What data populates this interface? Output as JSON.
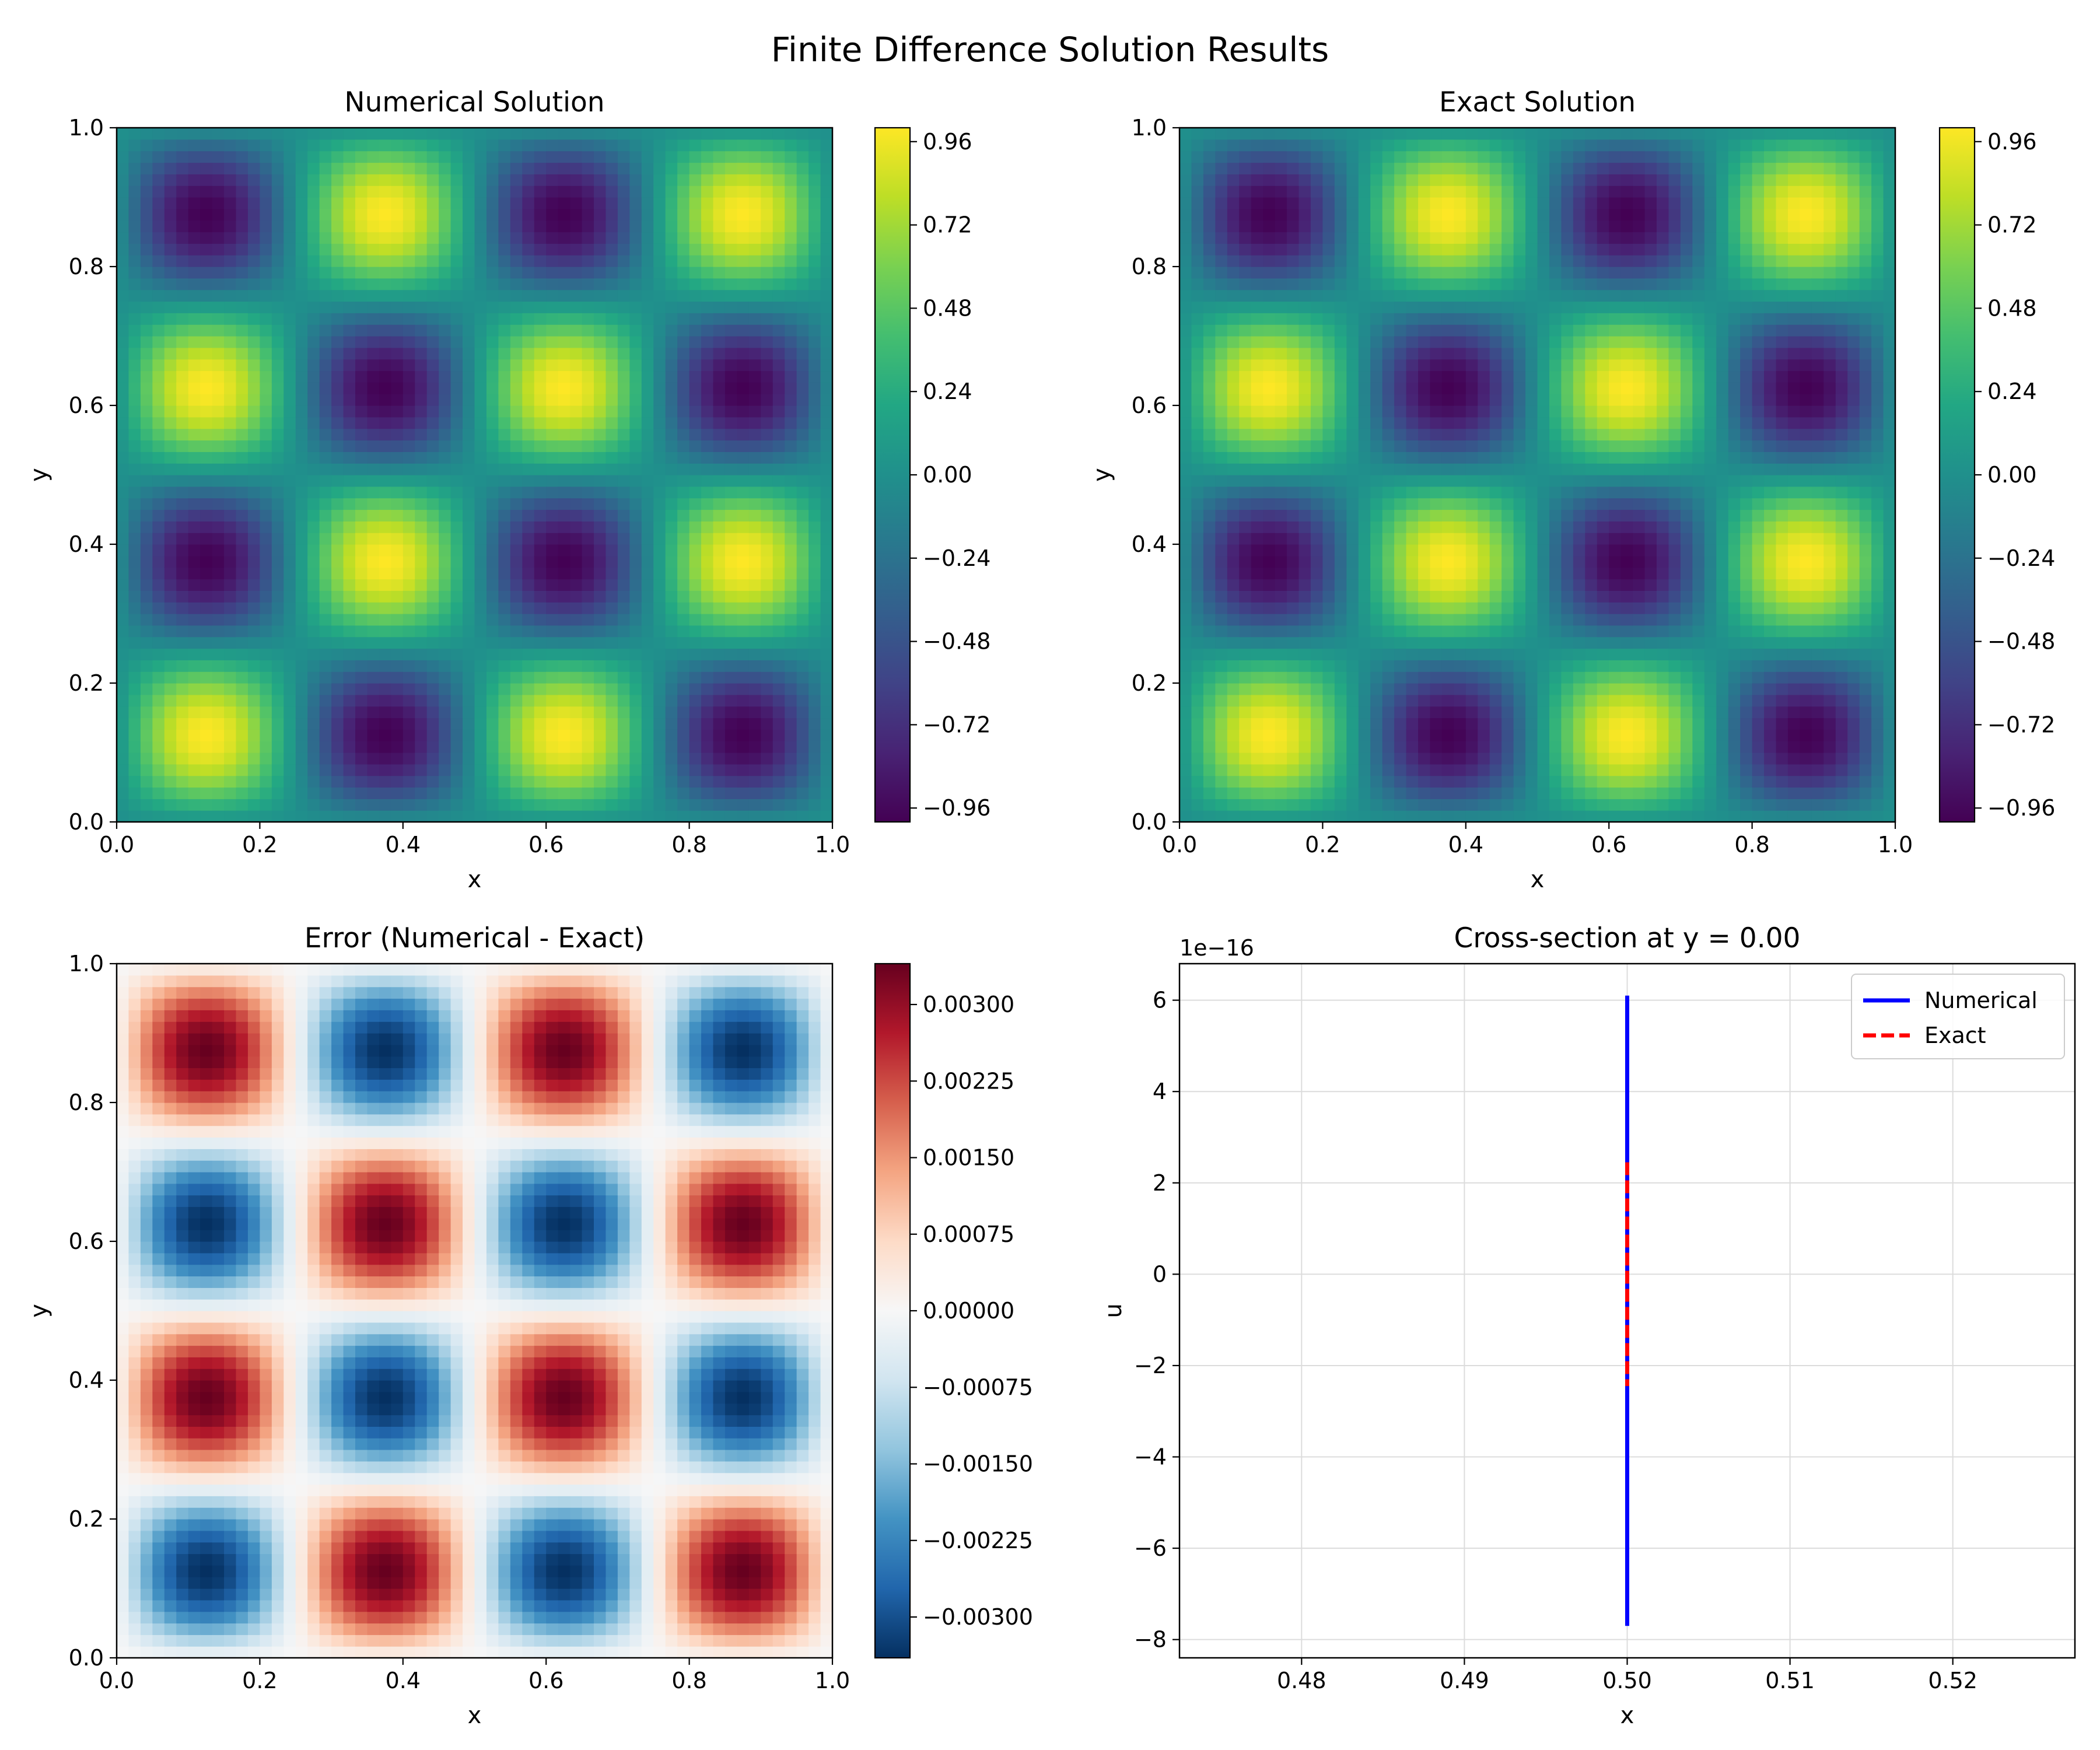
{
  "figure": {
    "title": "Finite Difference Solution Results"
  },
  "chart_data": [
    {
      "type": "heatmap",
      "title": "Numerical Solution",
      "xlabel": "x",
      "ylabel": "y",
      "xlim": [
        0.0,
        1.0
      ],
      "ylim": [
        0.0,
        1.0
      ],
      "x_ticks": [
        "0.0",
        "0.2",
        "0.4",
        "0.6",
        "0.8",
        "1.0"
      ],
      "y_ticks": [
        "0.0",
        "0.2",
        "0.4",
        "0.6",
        "0.8",
        "1.0"
      ],
      "field": "sin(4πx)·sin(4πy)",
      "colormap": "viridis",
      "clim": [
        -1.0,
        1.0
      ],
      "colorbar_ticks": [
        "0.96",
        "0.72",
        "0.48",
        "0.24",
        "0.00",
        "−0.24",
        "−0.48",
        "−0.72",
        "−0.96"
      ],
      "colorbar_tick_values": [
        0.96,
        0.72,
        0.48,
        0.24,
        0.0,
        -0.24,
        -0.48,
        -0.72,
        -0.96
      ]
    },
    {
      "type": "heatmap",
      "title": "Exact Solution",
      "xlabel": "x",
      "ylabel": "y",
      "xlim": [
        0.0,
        1.0
      ],
      "ylim": [
        0.0,
        1.0
      ],
      "x_ticks": [
        "0.0",
        "0.2",
        "0.4",
        "0.6",
        "0.8",
        "1.0"
      ],
      "y_ticks": [
        "0.0",
        "0.2",
        "0.4",
        "0.6",
        "0.8",
        "1.0"
      ],
      "field": "sin(4πx)·sin(4πy)",
      "colormap": "viridis",
      "clim": [
        -1.0,
        1.0
      ],
      "colorbar_ticks": [
        "0.96",
        "0.72",
        "0.48",
        "0.24",
        "0.00",
        "−0.24",
        "−0.48",
        "−0.72",
        "−0.96"
      ],
      "colorbar_tick_values": [
        0.96,
        0.72,
        0.48,
        0.24,
        0.0,
        -0.24,
        -0.48,
        -0.72,
        -0.96
      ]
    },
    {
      "type": "heatmap",
      "title": "Error (Numerical - Exact)",
      "xlabel": "x",
      "ylabel": "y",
      "xlim": [
        0.0,
        1.0
      ],
      "ylim": [
        0.0,
        1.0
      ],
      "x_ticks": [
        "0.0",
        "0.2",
        "0.4",
        "0.6",
        "0.8",
        "1.0"
      ],
      "y_ticks": [
        "0.0",
        "0.2",
        "0.4",
        "0.6",
        "0.8",
        "1.0"
      ],
      "field": "-0.0034·sin(4πx)·sin(4πy)",
      "colormap": "RdBu_r",
      "clim": [
        -0.0034,
        0.0034
      ],
      "colorbar_ticks": [
        "0.00300",
        "0.00225",
        "0.00150",
        "0.00075",
        "0.00000",
        "−0.00075",
        "−0.00150",
        "−0.00225",
        "−0.00300"
      ],
      "colorbar_tick_values": [
        0.003,
        0.00225,
        0.0015,
        0.00075,
        0.0,
        -0.00075,
        -0.0015,
        -0.00225,
        -0.003
      ]
    },
    {
      "type": "line",
      "title": "Cross-section at y = 0.00",
      "xlabel": "x",
      "ylabel": "u",
      "xlim": [
        0.4725,
        0.5275
      ],
      "ylim": [
        -8.4e-16,
        6.8e-16
      ],
      "x_ticks": [
        "0.48",
        "0.49",
        "0.50",
        "0.51",
        "0.52"
      ],
      "x_tick_values": [
        0.48,
        0.49,
        0.5,
        0.51,
        0.52
      ],
      "y_ticks": [
        "6",
        "4",
        "2",
        "0",
        "−2",
        "−4",
        "−6",
        "−8"
      ],
      "y_tick_values": [
        6,
        4,
        2,
        0,
        -2,
        -4,
        -6,
        -8
      ],
      "y_offset_label": "1e−16",
      "grid": true,
      "legend_position": "top-right",
      "series": [
        {
          "name": "Numerical",
          "color": "#0000ff",
          "style": "solid",
          "x": [
            0.5,
            0.5
          ],
          "y": [
            6.1e-16,
            -7.7e-16
          ]
        },
        {
          "name": "Exact",
          "color": "#ff0000",
          "style": "dashed",
          "x": [
            0.5,
            0.5
          ],
          "y": [
            2.45e-16,
            -2.45e-16
          ]
        }
      ]
    }
  ]
}
